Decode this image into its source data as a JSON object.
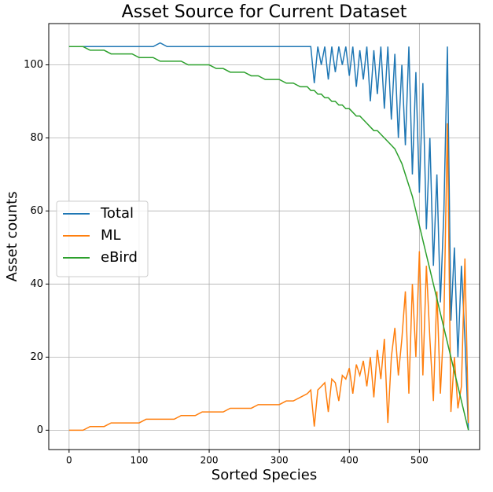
{
  "chart_data": {
    "type": "line",
    "title": "Asset Source for Current Dataset",
    "xlabel": "Sorted Species",
    "ylabel": "Asset counts",
    "x": [
      0,
      10,
      20,
      30,
      40,
      50,
      60,
      70,
      80,
      90,
      100,
      110,
      120,
      130,
      140,
      150,
      160,
      170,
      180,
      190,
      200,
      210,
      220,
      230,
      240,
      250,
      260,
      270,
      280,
      290,
      300,
      310,
      320,
      330,
      340,
      345,
      350,
      355,
      360,
      365,
      370,
      375,
      380,
      385,
      390,
      395,
      400,
      405,
      410,
      415,
      420,
      425,
      430,
      435,
      440,
      445,
      450,
      455,
      460,
      465,
      470,
      475,
      480,
      485,
      490,
      495,
      500,
      505,
      510,
      515,
      520,
      525,
      530,
      535,
      540,
      545,
      550,
      555,
      560,
      565,
      570
    ],
    "series": [
      {
        "name": "Total",
        "color": "#1f77b4",
        "values": [
          105,
          105,
          105,
          105,
          105,
          105,
          105,
          105,
          105,
          105,
          105,
          105,
          105,
          106,
          105,
          105,
          105,
          105,
          105,
          105,
          105,
          105,
          105,
          105,
          105,
          105,
          105,
          105,
          105,
          105,
          105,
          105,
          105,
          105,
          105,
          105,
          95,
          105,
          100,
          105,
          96,
          105,
          98,
          105,
          100,
          105,
          97,
          105,
          94,
          104,
          96,
          105,
          90,
          104,
          92,
          105,
          88,
          105,
          85,
          103,
          80,
          100,
          78,
          105,
          70,
          98,
          65,
          95,
          55,
          80,
          45,
          70,
          35,
          60,
          105,
          30,
          50,
          20,
          45,
          25,
          0
        ]
      },
      {
        "name": "ML",
        "color": "#ff7f0e",
        "values": [
          0,
          0,
          0,
          1,
          1,
          1,
          2,
          2,
          2,
          2,
          2,
          3,
          3,
          3,
          3,
          3,
          4,
          4,
          4,
          5,
          5,
          5,
          5,
          6,
          6,
          6,
          6,
          7,
          7,
          7,
          7,
          8,
          8,
          9,
          10,
          11,
          1,
          11,
          12,
          13,
          5,
          14,
          13,
          8,
          15,
          14,
          17,
          10,
          18,
          15,
          19,
          12,
          20,
          9,
          22,
          14,
          25,
          2,
          20,
          28,
          15,
          25,
          38,
          10,
          40,
          20,
          49,
          15,
          45,
          25,
          8,
          38,
          10,
          30,
          84,
          5,
          20,
          6,
          12,
          47,
          2
        ]
      },
      {
        "name": "eBird",
        "color": "#2ca02c",
        "values": [
          105,
          105,
          105,
          104,
          104,
          104,
          103,
          103,
          103,
          103,
          102,
          102,
          102,
          101,
          101,
          101,
          101,
          100,
          100,
          100,
          100,
          99,
          99,
          98,
          98,
          98,
          97,
          97,
          96,
          96,
          96,
          95,
          95,
          94,
          94,
          93,
          93,
          92,
          92,
          91,
          91,
          90,
          90,
          89,
          89,
          88,
          88,
          87,
          86,
          86,
          85,
          84,
          83,
          82,
          82,
          81,
          80,
          79,
          78,
          77,
          75,
          73,
          70,
          67,
          64,
          60,
          56,
          52,
          48,
          44,
          40,
          36,
          32,
          28,
          24,
          20,
          16,
          12,
          8,
          4,
          0
        ]
      }
    ],
    "xlim": [
      -29,
      586
    ],
    "ylim": [
      -5.3,
      111.3
    ],
    "xticks": [
      0,
      100,
      200,
      300,
      400,
      500
    ],
    "yticks": [
      0,
      20,
      40,
      60,
      80,
      100
    ],
    "grid": true,
    "legend": "center left"
  }
}
